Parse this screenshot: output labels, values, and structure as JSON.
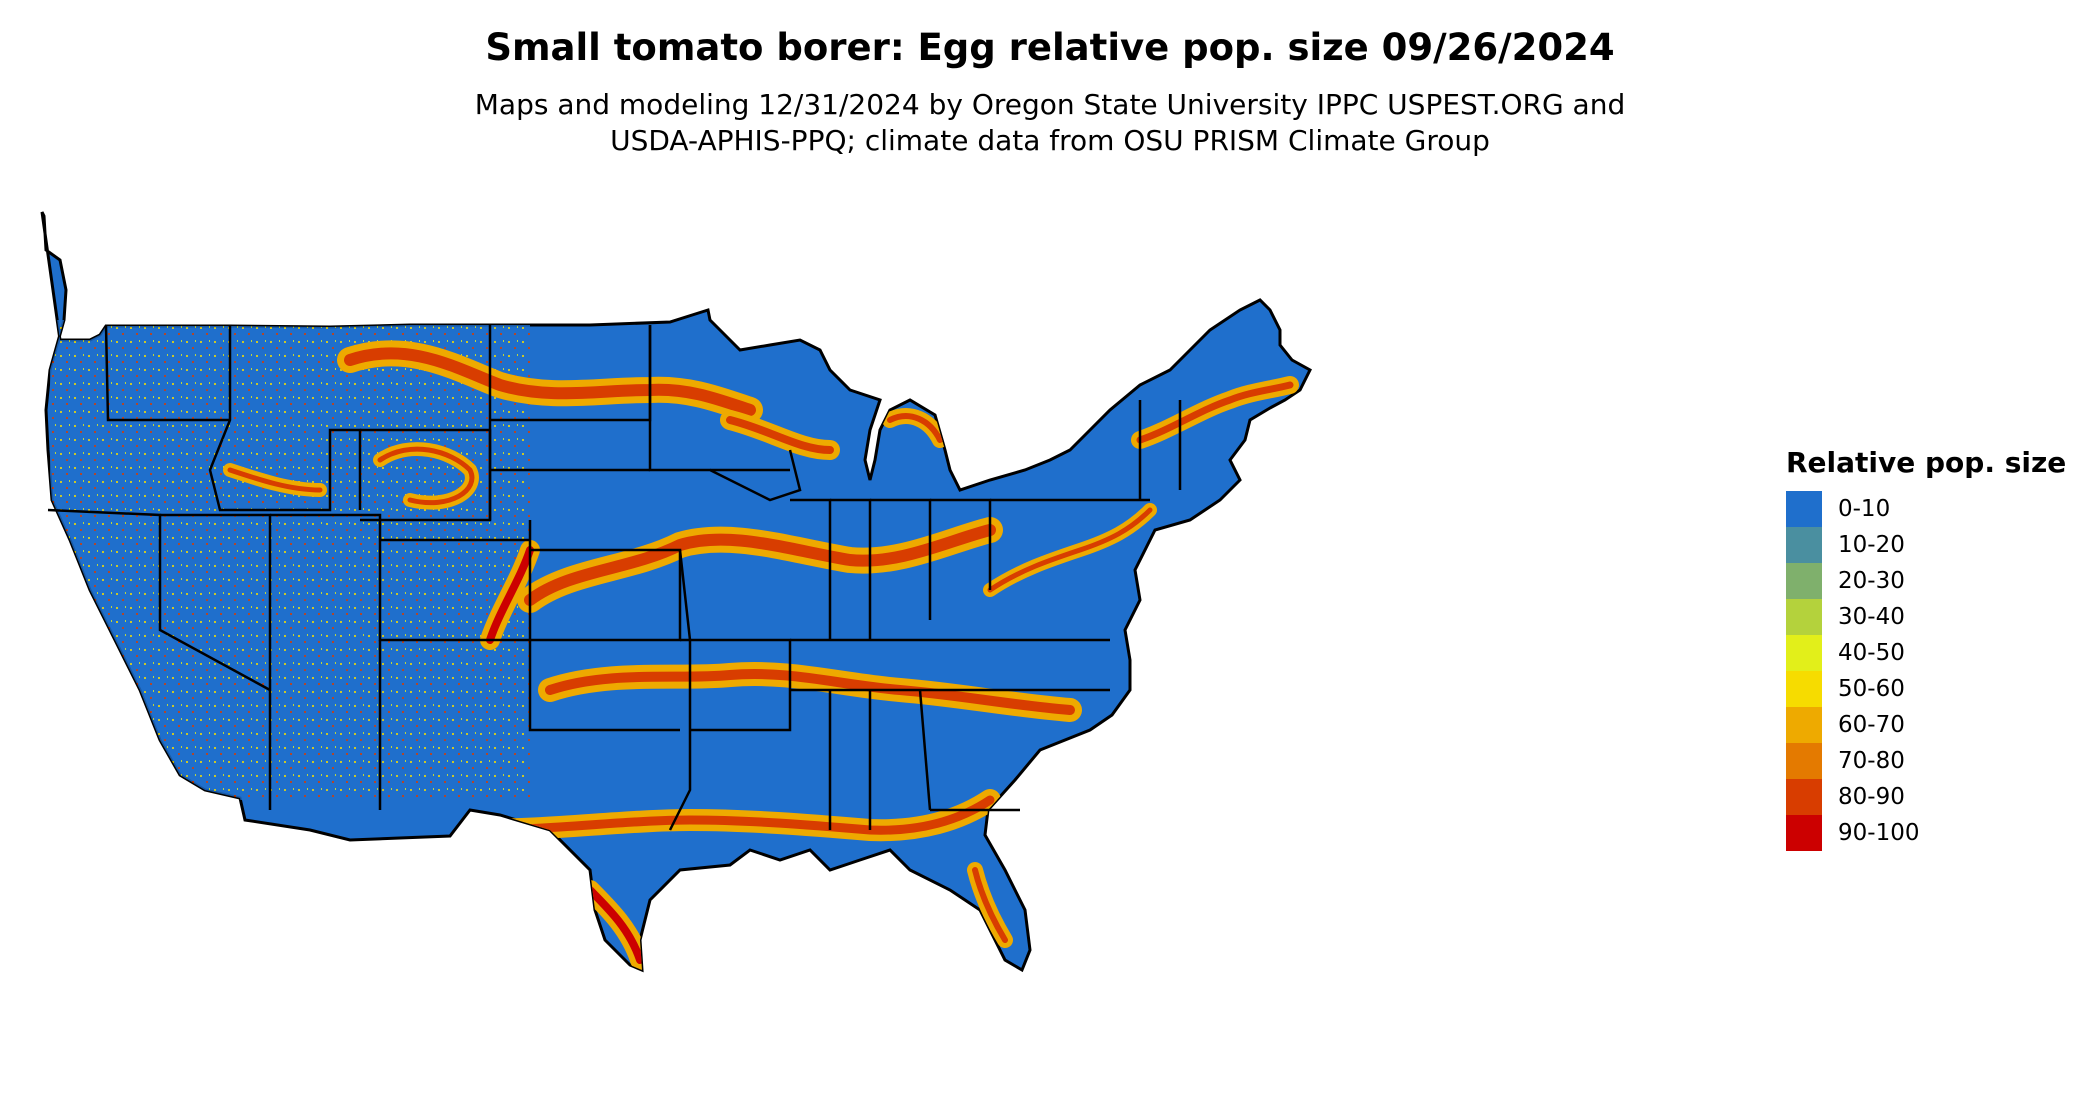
{
  "title": "Small tomato borer: Egg relative pop. size 09/26/2024",
  "subtitle_line1": "Maps and modeling 12/31/2024 by Oregon State University IPPC USPEST.ORG and",
  "subtitle_line2": "USDA-APHIS-PPQ; climate data from OSU PRISM Climate Group",
  "legend": {
    "title": "Relative pop. size",
    "items": [
      {
        "label": "0-10",
        "color": "#1f6fcc"
      },
      {
        "label": "10-20",
        "color": "#4a8fa0"
      },
      {
        "label": "20-30",
        "color": "#7fb06c"
      },
      {
        "label": "30-40",
        "color": "#b4d23c"
      },
      {
        "label": "40-50",
        "color": "#e2ef1a"
      },
      {
        "label": "50-60",
        "color": "#f6dc00"
      },
      {
        "label": "60-70",
        "color": "#eeaa00"
      },
      {
        "label": "70-80",
        "color": "#e47a00"
      },
      {
        "label": "80-90",
        "color": "#d83d00"
      },
      {
        "label": "90-100",
        "color": "#cc0000"
      }
    ]
  },
  "map": {
    "region": "Contiguous United States",
    "base_color": "#1f6fcc",
    "border_color": "#000000"
  }
}
